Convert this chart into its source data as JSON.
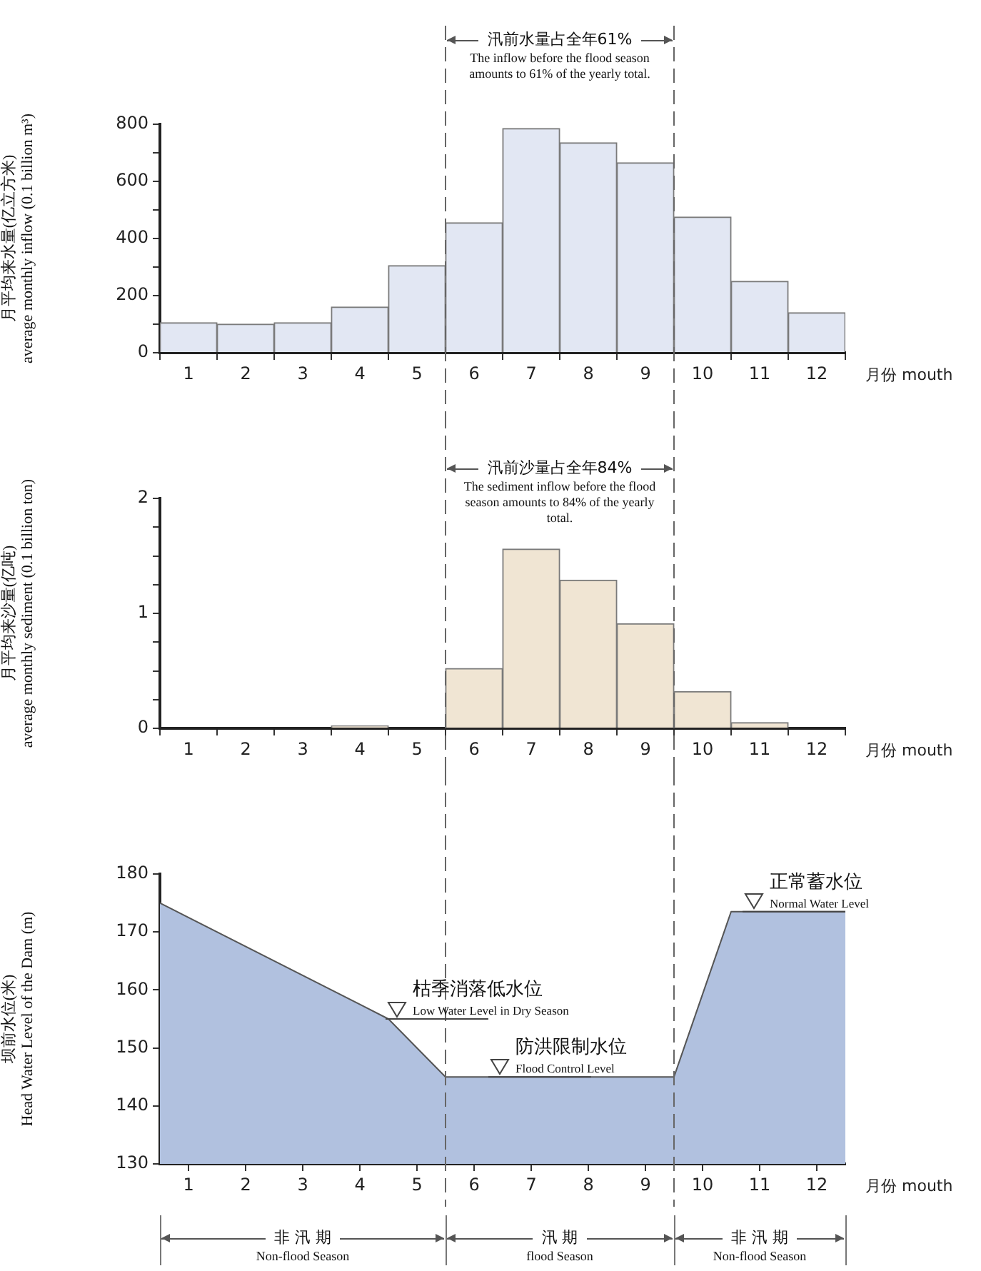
{
  "chart_data": [
    {
      "type": "bar",
      "ylabel": "月平均来水量(亿立方米)\naverage monthly inflow (0.1 billion m³)",
      "xlabel": "月份 mouth",
      "x": [
        1,
        2,
        3,
        4,
        5,
        6,
        7,
        8,
        9,
        10,
        11,
        12
      ],
      "series": [
        {
          "color": "#e2e7f3",
          "values": [
            105,
            100,
            105,
            160,
            305,
            455,
            785,
            735,
            665,
            475,
            250,
            140
          ]
        }
      ],
      "xlim": [
        0.5,
        12.5
      ],
      "xticks": [
        1,
        2,
        3,
        4,
        5,
        6,
        7,
        8,
        9,
        10,
        11,
        12
      ],
      "ylim": [
        0,
        800
      ],
      "yticks": [
        0,
        {
          "value": 100,
          "label": null
        },
        200,
        {
          "value": 300,
          "label": null
        },
        400,
        {
          "value": 500,
          "label": null
        },
        600,
        {
          "value": 700,
          "label": null
        },
        800
      ],
      "ref_lines": [
        {
          "axis": "x",
          "value": 5.5,
          "line_style": "dashed"
        },
        {
          "axis": "x",
          "value": 9.5,
          "line_style": "dashed"
        }
      ],
      "annotations": [
        "汛前水量占全年61%\nThe inflow before the flood season amounts to 61% of the yearly total."
      ]
    },
    {
      "type": "bar",
      "ylabel": "月平均来沙量(亿吨)\naverage monthly sediment (0.1 billion ton)",
      "xlabel": "月份 mouth",
      "x": [
        1,
        2,
        3,
        4,
        5,
        6,
        7,
        8,
        9,
        10,
        11,
        12
      ],
      "series": [
        {
          "color": "#f0e5d3",
          "values": [
            0,
            0,
            0,
            0.02,
            0,
            0.52,
            1.56,
            1.29,
            0.91,
            0.32,
            0.05,
            0
          ]
        }
      ],
      "xlim": [
        0.5,
        12.5
      ],
      "xticks": [
        1,
        2,
        3,
        4,
        5,
        6,
        7,
        8,
        9,
        10,
        11,
        12
      ],
      "ylim": [
        0,
        2
      ],
      "yticks": [
        0,
        {
          "value": 0.25,
          "label": null
        },
        {
          "value": 0.5,
          "label": null
        },
        {
          "value": 0.75,
          "label": null
        },
        1,
        {
          "value": 1.25,
          "label": null
        },
        {
          "value": 1.5,
          "label": null
        },
        {
          "value": 1.75,
          "label": null
        },
        2
      ],
      "ref_lines": [
        {
          "axis": "x",
          "value": 5.5,
          "line_style": "dashed"
        },
        {
          "axis": "x",
          "value": 9.5,
          "line_style": "dashed"
        }
      ],
      "annotations": [
        "汛前沙量占全年84%\nThe sediment inflow before the flood season amounts to 84% of the yearly total."
      ]
    },
    {
      "type": "area",
      "ylabel": "坝前水位(米)\nHead Water Level of the Dam (m)",
      "xlabel": "月份 mouth",
      "series": [
        {
          "color": "#b1c1df",
          "x": [
            0.5,
            4.5,
            5.5,
            9.5,
            10.5,
            12.5
          ],
          "values": [
            175,
            155,
            145,
            145,
            173.5,
            173.5
          ]
        }
      ],
      "xlim": [
        0.5,
        12.5
      ],
      "xticks": [
        1,
        2,
        3,
        4,
        5,
        6,
        7,
        8,
        9,
        10,
        11,
        12
      ],
      "ylim": [
        130,
        180
      ],
      "yticks": [
        130,
        140,
        150,
        160,
        170,
        180
      ],
      "ref_lines": [
        {
          "axis": "x",
          "value": 5.5,
          "line_style": "dashed"
        },
        {
          "axis": "x",
          "value": 9.5,
          "line_style": "dashed"
        }
      ],
      "annotations": [
        "非 汛 期\nNon-flood Season",
        "汛 期\nflood Season",
        "非 汛 期\nNon-flood Season",
        {
          "text": "枯季消落低水位\nLow Water Level in Dry Season",
          "x": 4.5,
          "y": 155
        },
        {
          "text": "防洪限制水位\nFlood Control Level",
          "x": 6.3,
          "y": 145
        },
        {
          "text": "正常蓄水位\nNormal Water Level",
          "x": 10.75,
          "y": 173.5
        }
      ]
    }
  ]
}
